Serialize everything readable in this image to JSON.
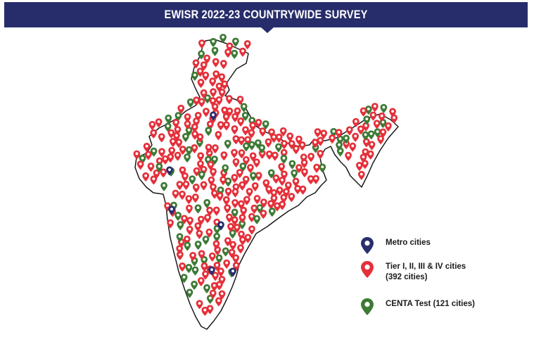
{
  "header": {
    "title": "EWISR 2022-23 COUNTRYWIDE SURVEY"
  },
  "colors": {
    "banner": "#272d6b",
    "metro": "#2a2e6e",
    "tier": "#e5303a",
    "centa": "#3d7a35",
    "outline": "#1a1a1a"
  },
  "legend": {
    "metro": {
      "label": "Metro cities",
      "icon": "map-pin-navy"
    },
    "tier": {
      "label": "Tier I, II, III & IV cities",
      "sublabel": "(392 cities)",
      "icon": "map-pin-red"
    },
    "centa": {
      "label": "CENTA Test (121 cities)",
      "icon": "map-pin-green"
    }
  }
}
